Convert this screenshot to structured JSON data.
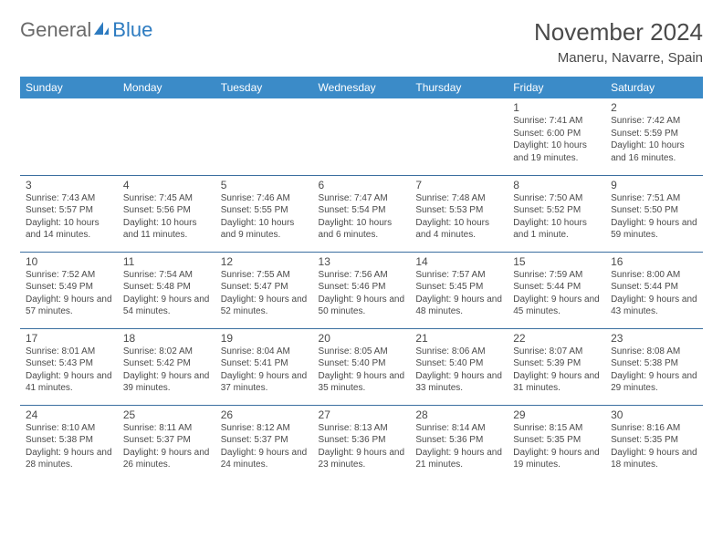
{
  "brand": {
    "word1": "General",
    "word2": "Blue"
  },
  "title": "November 2024",
  "location": "Maneru, Navarre, Spain",
  "colors": {
    "header_bg": "#3b8bc8",
    "border": "#3b6fa0",
    "text": "#4a4a4a",
    "logo_gray": "#6a6a6a",
    "logo_blue": "#2d7bc0"
  },
  "day_names": [
    "Sunday",
    "Monday",
    "Tuesday",
    "Wednesday",
    "Thursday",
    "Friday",
    "Saturday"
  ],
  "weeks": [
    [
      {
        "n": "",
        "sr": "",
        "ss": "",
        "dl": ""
      },
      {
        "n": "",
        "sr": "",
        "ss": "",
        "dl": ""
      },
      {
        "n": "",
        "sr": "",
        "ss": "",
        "dl": ""
      },
      {
        "n": "",
        "sr": "",
        "ss": "",
        "dl": ""
      },
      {
        "n": "",
        "sr": "",
        "ss": "",
        "dl": ""
      },
      {
        "n": "1",
        "sr": "Sunrise: 7:41 AM",
        "ss": "Sunset: 6:00 PM",
        "dl": "Daylight: 10 hours and 19 minutes."
      },
      {
        "n": "2",
        "sr": "Sunrise: 7:42 AM",
        "ss": "Sunset: 5:59 PM",
        "dl": "Daylight: 10 hours and 16 minutes."
      }
    ],
    [
      {
        "n": "3",
        "sr": "Sunrise: 7:43 AM",
        "ss": "Sunset: 5:57 PM",
        "dl": "Daylight: 10 hours and 14 minutes."
      },
      {
        "n": "4",
        "sr": "Sunrise: 7:45 AM",
        "ss": "Sunset: 5:56 PM",
        "dl": "Daylight: 10 hours and 11 minutes."
      },
      {
        "n": "5",
        "sr": "Sunrise: 7:46 AM",
        "ss": "Sunset: 5:55 PM",
        "dl": "Daylight: 10 hours and 9 minutes."
      },
      {
        "n": "6",
        "sr": "Sunrise: 7:47 AM",
        "ss": "Sunset: 5:54 PM",
        "dl": "Daylight: 10 hours and 6 minutes."
      },
      {
        "n": "7",
        "sr": "Sunrise: 7:48 AM",
        "ss": "Sunset: 5:53 PM",
        "dl": "Daylight: 10 hours and 4 minutes."
      },
      {
        "n": "8",
        "sr": "Sunrise: 7:50 AM",
        "ss": "Sunset: 5:52 PM",
        "dl": "Daylight: 10 hours and 1 minute."
      },
      {
        "n": "9",
        "sr": "Sunrise: 7:51 AM",
        "ss": "Sunset: 5:50 PM",
        "dl": "Daylight: 9 hours and 59 minutes."
      }
    ],
    [
      {
        "n": "10",
        "sr": "Sunrise: 7:52 AM",
        "ss": "Sunset: 5:49 PM",
        "dl": "Daylight: 9 hours and 57 minutes."
      },
      {
        "n": "11",
        "sr": "Sunrise: 7:54 AM",
        "ss": "Sunset: 5:48 PM",
        "dl": "Daylight: 9 hours and 54 minutes."
      },
      {
        "n": "12",
        "sr": "Sunrise: 7:55 AM",
        "ss": "Sunset: 5:47 PM",
        "dl": "Daylight: 9 hours and 52 minutes."
      },
      {
        "n": "13",
        "sr": "Sunrise: 7:56 AM",
        "ss": "Sunset: 5:46 PM",
        "dl": "Daylight: 9 hours and 50 minutes."
      },
      {
        "n": "14",
        "sr": "Sunrise: 7:57 AM",
        "ss": "Sunset: 5:45 PM",
        "dl": "Daylight: 9 hours and 48 minutes."
      },
      {
        "n": "15",
        "sr": "Sunrise: 7:59 AM",
        "ss": "Sunset: 5:44 PM",
        "dl": "Daylight: 9 hours and 45 minutes."
      },
      {
        "n": "16",
        "sr": "Sunrise: 8:00 AM",
        "ss": "Sunset: 5:44 PM",
        "dl": "Daylight: 9 hours and 43 minutes."
      }
    ],
    [
      {
        "n": "17",
        "sr": "Sunrise: 8:01 AM",
        "ss": "Sunset: 5:43 PM",
        "dl": "Daylight: 9 hours and 41 minutes."
      },
      {
        "n": "18",
        "sr": "Sunrise: 8:02 AM",
        "ss": "Sunset: 5:42 PM",
        "dl": "Daylight: 9 hours and 39 minutes."
      },
      {
        "n": "19",
        "sr": "Sunrise: 8:04 AM",
        "ss": "Sunset: 5:41 PM",
        "dl": "Daylight: 9 hours and 37 minutes."
      },
      {
        "n": "20",
        "sr": "Sunrise: 8:05 AM",
        "ss": "Sunset: 5:40 PM",
        "dl": "Daylight: 9 hours and 35 minutes."
      },
      {
        "n": "21",
        "sr": "Sunrise: 8:06 AM",
        "ss": "Sunset: 5:40 PM",
        "dl": "Daylight: 9 hours and 33 minutes."
      },
      {
        "n": "22",
        "sr": "Sunrise: 8:07 AM",
        "ss": "Sunset: 5:39 PM",
        "dl": "Daylight: 9 hours and 31 minutes."
      },
      {
        "n": "23",
        "sr": "Sunrise: 8:08 AM",
        "ss": "Sunset: 5:38 PM",
        "dl": "Daylight: 9 hours and 29 minutes."
      }
    ],
    [
      {
        "n": "24",
        "sr": "Sunrise: 8:10 AM",
        "ss": "Sunset: 5:38 PM",
        "dl": "Daylight: 9 hours and 28 minutes."
      },
      {
        "n": "25",
        "sr": "Sunrise: 8:11 AM",
        "ss": "Sunset: 5:37 PM",
        "dl": "Daylight: 9 hours and 26 minutes."
      },
      {
        "n": "26",
        "sr": "Sunrise: 8:12 AM",
        "ss": "Sunset: 5:37 PM",
        "dl": "Daylight: 9 hours and 24 minutes."
      },
      {
        "n": "27",
        "sr": "Sunrise: 8:13 AM",
        "ss": "Sunset: 5:36 PM",
        "dl": "Daylight: 9 hours and 23 minutes."
      },
      {
        "n": "28",
        "sr": "Sunrise: 8:14 AM",
        "ss": "Sunset: 5:36 PM",
        "dl": "Daylight: 9 hours and 21 minutes."
      },
      {
        "n": "29",
        "sr": "Sunrise: 8:15 AM",
        "ss": "Sunset: 5:35 PM",
        "dl": "Daylight: 9 hours and 19 minutes."
      },
      {
        "n": "30",
        "sr": "Sunrise: 8:16 AM",
        "ss": "Sunset: 5:35 PM",
        "dl": "Daylight: 9 hours and 18 minutes."
      }
    ]
  ]
}
